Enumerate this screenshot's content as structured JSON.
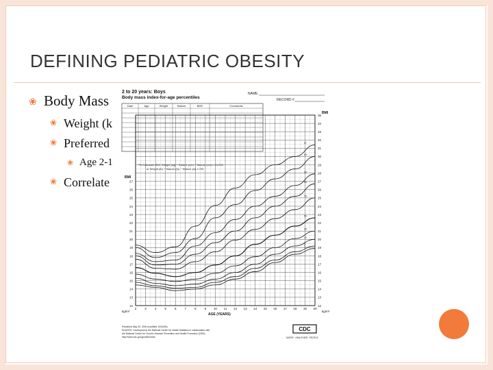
{
  "slide": {
    "title": "DEFINING PEDIATRIC OBESITY",
    "bullets": [
      {
        "text": "Body Mass"
      },
      {
        "text": "Weight (k"
      },
      {
        "text": "Preferred"
      },
      {
        "text": "Age 2-1"
      },
      {
        "text": "Correlate"
      }
    ]
  },
  "bmi_chart": {
    "header_line1": "2 to 20 years: Boys",
    "header_line2": "Body mass index-for-age percentiles",
    "name_label": "NAME",
    "record_label": "RECORD #",
    "table_headers": [
      "Date",
      "Age",
      "Weight",
      "Stature",
      "BMI*",
      "Comments"
    ],
    "bmi_axis_label": "BMI",
    "age_axis_label": "AGE (YEARS)",
    "unit_label": "kg/m²",
    "formula_note_1": "*To Calculate BMI: Weight (kg) ÷ Stature (cm) ÷ Stature (cm) x 10,000",
    "formula_note_2": "or Weight (lb) ÷ Stature (in) ÷ Stature (in) x 703",
    "footer_1": "Published May 30, 2000 (modified 10/16/00).",
    "footer_2": "SOURCE: Developed by the National Center for Health Statistics in collaboration with",
    "footer_3": "the National Center for Chronic Disease Prevention and Health Promotion (2000).",
    "footer_4": "http://www.cdc.gov/growthcharts",
    "logo_text": "CDC",
    "tagline": "SAFER · HEALTHIER · PEOPLE"
  },
  "chart_data": {
    "type": "line",
    "title": "Body mass index-for-age percentiles",
    "xlabel": "AGE (YEARS)",
    "ylabel": "BMI",
    "xlim": [
      2,
      20
    ],
    "ylim": [
      12,
      35
    ],
    "x_ticks": [
      2,
      3,
      4,
      5,
      6,
      7,
      8,
      9,
      10,
      11,
      12,
      13,
      14,
      15,
      16,
      17,
      18,
      19,
      20
    ],
    "y_ticks_right": [
      12,
      13,
      14,
      15,
      16,
      17,
      18,
      19,
      20,
      21,
      22,
      23,
      24,
      25,
      26,
      27,
      28,
      29,
      30,
      31,
      32,
      33,
      34,
      35
    ],
    "y_ticks_left": [
      12,
      13,
      14,
      15,
      16,
      17,
      18,
      19,
      20,
      21,
      22,
      23,
      24,
      25,
      26,
      27
    ],
    "x": [
      2,
      4,
      6,
      8,
      10,
      12,
      14,
      16,
      18,
      20
    ],
    "series": [
      {
        "name": "97",
        "values": [
          19.3,
          18.4,
          19.1,
          21.6,
          24.1,
          26.2,
          27.8,
          29.0,
          30.0,
          31.4
        ]
      },
      {
        "name": "95",
        "values": [
          19.0,
          17.8,
          18.4,
          20.1,
          22.6,
          24.2,
          25.9,
          27.3,
          28.5,
          30.0
        ]
      },
      {
        "name": "90",
        "values": [
          18.3,
          17.3,
          17.5,
          19.2,
          20.8,
          22.4,
          24.0,
          25.2,
          26.5,
          27.9
        ]
      },
      {
        "name": "85",
        "values": [
          18.0,
          16.9,
          17.0,
          18.2,
          19.6,
          21.0,
          22.6,
          24.0,
          25.2,
          26.7
        ]
      },
      {
        "name": "75",
        "values": [
          17.6,
          16.5,
          16.4,
          17.3,
          18.5,
          19.9,
          21.2,
          22.5,
          23.6,
          25.0
        ]
      },
      {
        "name": "50",
        "values": [
          16.6,
          15.9,
          15.5,
          16.0,
          16.9,
          18.0,
          19.4,
          20.5,
          21.6,
          22.6
        ]
      },
      {
        "name": "25",
        "values": [
          15.8,
          15.2,
          14.9,
          15.2,
          15.9,
          16.8,
          17.9,
          19.0,
          20.1,
          21.0
        ]
      },
      {
        "name": "10",
        "values": [
          15.3,
          14.7,
          14.4,
          14.6,
          15.2,
          16.0,
          17.0,
          18.2,
          19.2,
          20.0
        ]
      },
      {
        "name": "5",
        "values": [
          14.8,
          14.4,
          14.1,
          14.2,
          14.8,
          15.5,
          16.5,
          17.5,
          18.5,
          19.2
        ]
      },
      {
        "name": "3",
        "values": [
          14.5,
          14.2,
          13.8,
          14.0,
          14.5,
          15.2,
          16.1,
          17.2,
          18.2,
          18.9
        ]
      }
    ]
  }
}
